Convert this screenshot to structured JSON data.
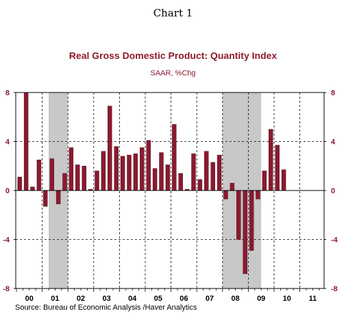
{
  "heading": "Chart 1",
  "source": "Source:  Bureau of Economic Analysis /Haver Analytics",
  "colors": {
    "bar": "#8B1A2F",
    "title": "#8B1A2F",
    "subtitle": "#8B1A2F",
    "recession": "#C8C8C8",
    "axis": "#000000",
    "tick_label_left": "#8B1A2F",
    "tick_label_right": "#8B1A2F"
  },
  "chart_data": {
    "type": "bar",
    "title": "Real Gross Domestic Product: Quantity Index",
    "subtitle": "SAAR, %Chg",
    "xlabel": "",
    "ylabel": "",
    "ylim": [
      -8,
      8
    ],
    "yticks": [
      -8,
      -4,
      0,
      4,
      8
    ],
    "ytick_labels": [
      "-8",
      "-4",
      "0",
      "4",
      "8"
    ],
    "grid": "dashed horizontal and vertical",
    "x_labels": [
      "00",
      "01",
      "02",
      "03",
      "04",
      "05",
      "06",
      "07",
      "08",
      "09",
      "10",
      "11"
    ],
    "recessions": [
      {
        "start": "2001Q2",
        "end": "2001Q4"
      },
      {
        "start": "2008Q1",
        "end": "2009Q2"
      }
    ],
    "categories": [
      "2000Q1",
      "2000Q2",
      "2000Q3",
      "2000Q4",
      "2001Q1",
      "2001Q2",
      "2001Q3",
      "2001Q4",
      "2002Q1",
      "2002Q2",
      "2002Q3",
      "2002Q4",
      "2003Q1",
      "2003Q2",
      "2003Q3",
      "2003Q4",
      "2004Q1",
      "2004Q2",
      "2004Q3",
      "2004Q4",
      "2005Q1",
      "2005Q2",
      "2005Q3",
      "2005Q4",
      "2006Q1",
      "2006Q2",
      "2006Q3",
      "2006Q4",
      "2007Q1",
      "2007Q2",
      "2007Q3",
      "2007Q4",
      "2008Q1",
      "2008Q2",
      "2008Q3",
      "2008Q4",
      "2009Q1",
      "2009Q2",
      "2009Q3",
      "2009Q4",
      "2010Q1",
      "2010Q2"
    ],
    "values": [
      1.1,
      8.0,
      0.3,
      2.5,
      -1.3,
      2.6,
      -1.1,
      1.4,
      3.5,
      2.1,
      2.0,
      0.1,
      1.6,
      3.2,
      6.9,
      3.6,
      2.8,
      2.9,
      3.0,
      3.5,
      4.1,
      1.8,
      3.1,
      2.1,
      5.4,
      1.4,
      0.1,
      3.0,
      0.9,
      3.2,
      2.3,
      2.9,
      -0.7,
      0.6,
      -4.0,
      -6.8,
      -4.9,
      -0.7,
      1.6,
      5.0,
      3.7,
      1.7
    ]
  }
}
